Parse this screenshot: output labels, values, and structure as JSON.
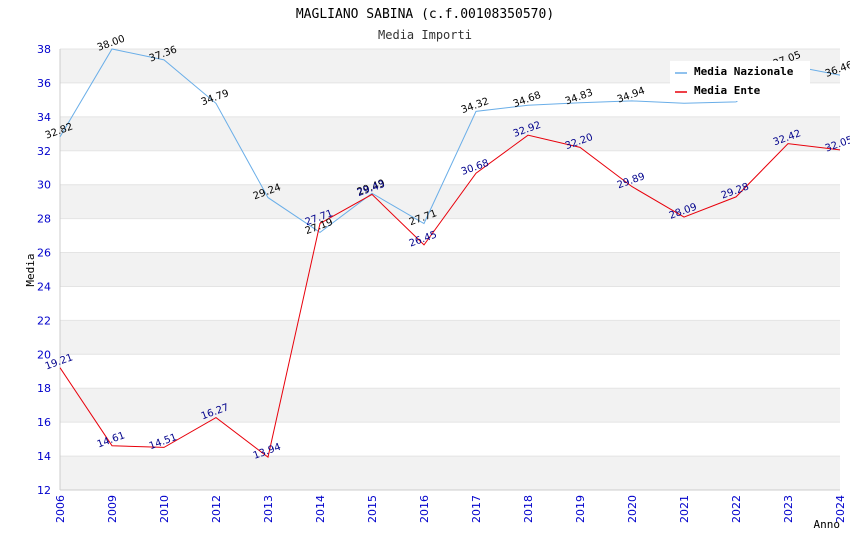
{
  "chart_data": {
    "type": "line",
    "title": "MAGLIANO SABINA (c.f.00108350570)",
    "subtitle": "Media Importi",
    "xlabel": "Anno",
    "ylabel": "Media",
    "ylim": [
      12,
      38
    ],
    "yticks": [
      12,
      14,
      16,
      18,
      20,
      22,
      24,
      26,
      28,
      30,
      32,
      34,
      36,
      38
    ],
    "categories": [
      "2006",
      "2009",
      "2010",
      "2012",
      "2013",
      "2014",
      "2015",
      "2016",
      "2017",
      "2018",
      "2019",
      "2020",
      "2021",
      "2022",
      "2023",
      "2024"
    ],
    "grid": "horizontal alternating bands",
    "legend_position": "top-right",
    "series": [
      {
        "name": "Media Nazionale",
        "color": "#6aaee8",
        "label_color": "#000000",
        "values": [
          32.82,
          38.0,
          37.36,
          34.79,
          29.24,
          27.19,
          29.49,
          27.71,
          34.32,
          34.68,
          34.83,
          34.94,
          34.8,
          34.88,
          37.05,
          36.46
        ],
        "labels": [
          "32.82",
          "38.00",
          "37.36",
          "34.79",
          "29.24",
          "27.19",
          "29.49",
          "27.71",
          "34.32",
          "34.68",
          "34.83",
          "34.94",
          "",
          "",
          "37.05",
          "36.46"
        ]
      },
      {
        "name": "Media Ente",
        "color": "#e8000b",
        "label_color": "#00008b",
        "values": [
          19.21,
          14.61,
          14.51,
          16.27,
          13.94,
          27.71,
          29.43,
          26.45,
          30.68,
          32.92,
          32.2,
          29.89,
          28.09,
          29.28,
          32.42,
          32.05
        ],
        "labels": [
          "19.21",
          "14.61",
          "14.51",
          "16.27",
          "13.94",
          "27.71",
          "29.43",
          "26.45",
          "30.68",
          "32.92",
          "32.20",
          "29.89",
          "28.09",
          "29.28",
          "32.42",
          "32.05"
        ]
      }
    ]
  }
}
